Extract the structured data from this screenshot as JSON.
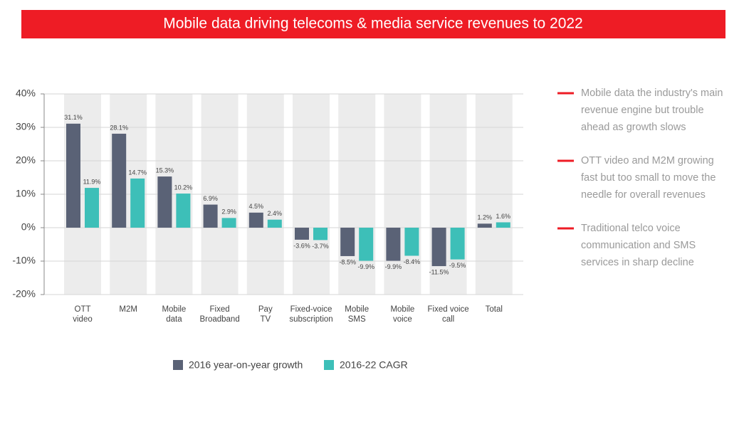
{
  "chart_data": {
    "type": "bar",
    "title": "Mobile data driving telecoms & media service revenues to 2022",
    "categories": [
      [
        "OTT",
        "video"
      ],
      [
        "M2M"
      ],
      [
        "Mobile",
        "data"
      ],
      [
        "Fixed",
        "Broadband"
      ],
      [
        "Pay",
        "TV"
      ],
      [
        "Fixed-voice",
        "subscription"
      ],
      [
        "Mobile",
        "SMS"
      ],
      [
        "Mobile",
        "voice"
      ],
      [
        "Fixed voice",
        "call"
      ],
      [
        "Total"
      ]
    ],
    "series": [
      {
        "name": "2016 year-on-year growth",
        "color": "#5a6276",
        "values": [
          31.1,
          28.1,
          15.3,
          6.9,
          4.5,
          -3.6,
          -8.5,
          -9.9,
          -11.5,
          1.2
        ],
        "value_labels": [
          "31.1%",
          "28.1%",
          "15.3%",
          "6.9%",
          "4.5%",
          "-3.6%",
          "-8.5%",
          "-9.9%",
          "-11.5%",
          "1.2%"
        ]
      },
      {
        "name": "2016-22 CAGR",
        "color": "#3dbfb8",
        "values": [
          11.9,
          14.7,
          10.2,
          2.9,
          2.4,
          -3.7,
          -9.9,
          -8.4,
          -9.5,
          1.6
        ],
        "value_labels": [
          "11.9%",
          "14.7%",
          "10.2%",
          "2.9%",
          "2.4%",
          "-3.7%",
          "-9.9%",
          "-8.4%",
          "-9.5%",
          "1.6%"
        ]
      }
    ],
    "ylim": [
      -20,
      40
    ],
    "yticks": [
      {
        "value": -20,
        "label": "-20%"
      },
      {
        "value": -10,
        "label": "-10%"
      },
      {
        "value": 0,
        "label": "0%"
      },
      {
        "value": 10,
        "label": "10%"
      },
      {
        "value": 20,
        "label": "20%"
      },
      {
        "value": 30,
        "label": "30%"
      },
      {
        "value": 40,
        "label": "40%"
      }
    ],
    "grid": true,
    "annotations": [
      [
        "Mobile data the industry's main",
        "revenue engine but trouble",
        "ahead as growth slows"
      ],
      [
        "OTT video and M2M growing",
        "fast but too small to move the",
        "needle for overall revenues"
      ],
      [
        "Traditional telco voice",
        "communication and SMS",
        "services in sharp decline"
      ]
    ]
  }
}
